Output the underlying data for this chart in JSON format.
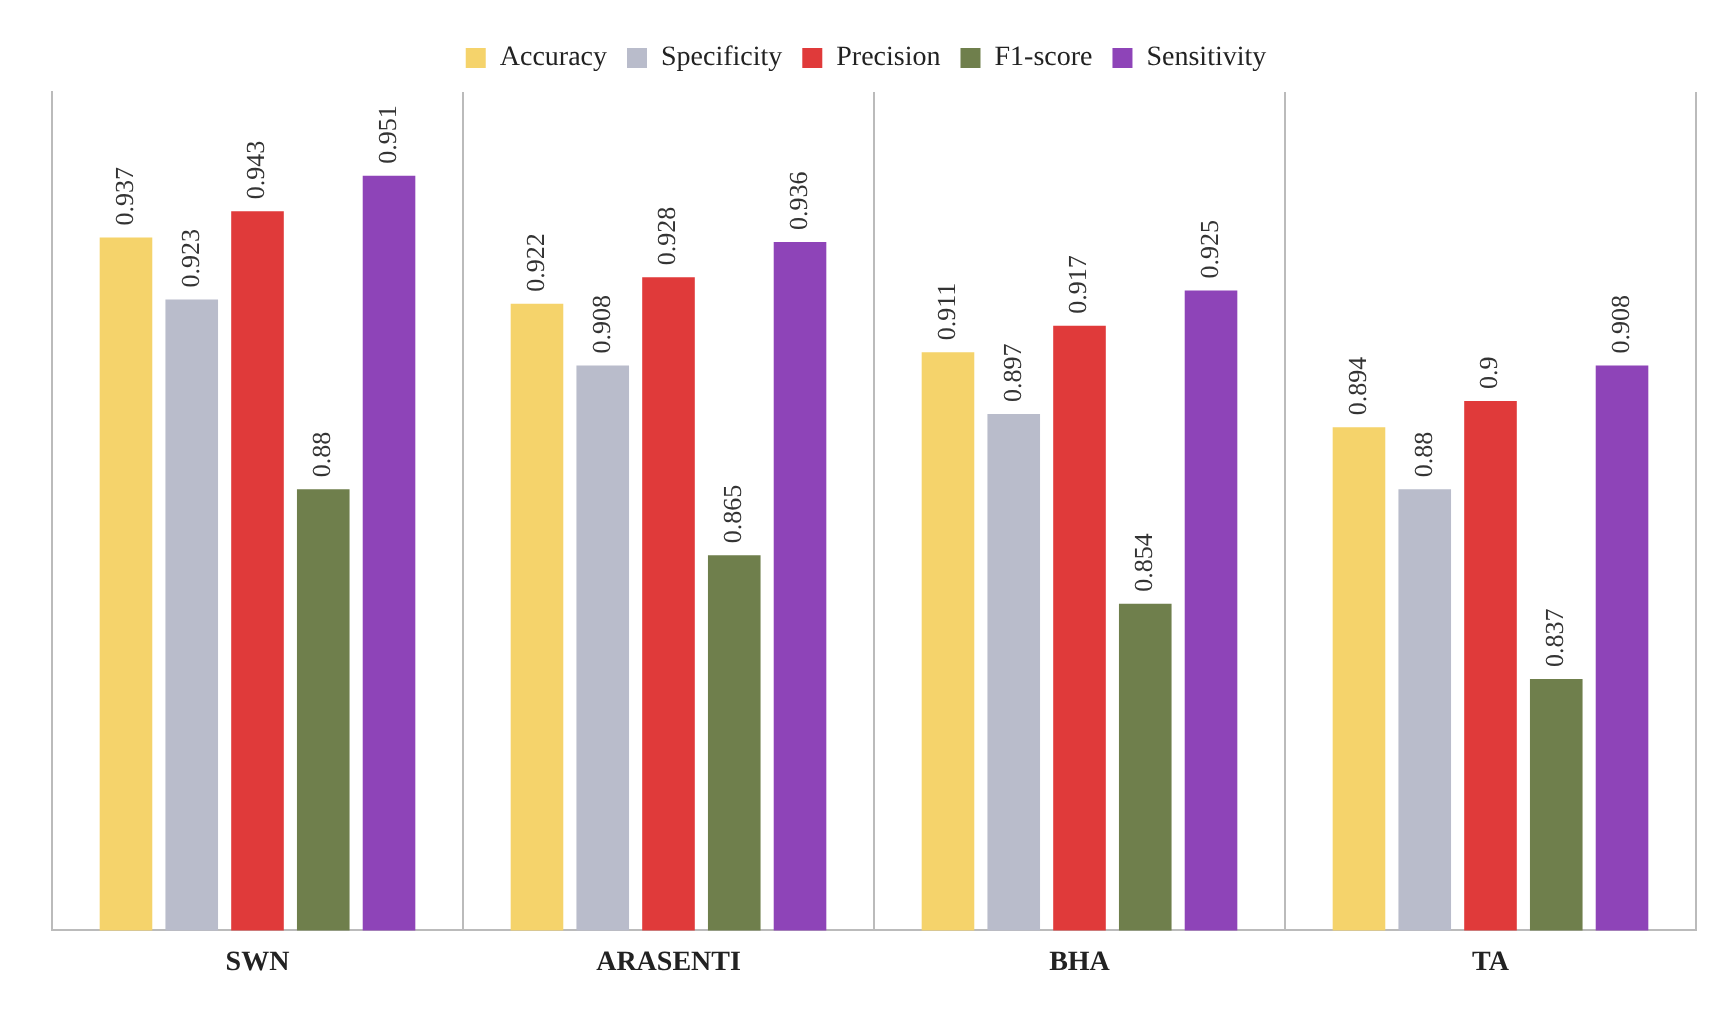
{
  "chart_data": {
    "type": "bar",
    "categories": [
      "SWN",
      "ARASENTI",
      "BHA",
      "TA"
    ],
    "series": [
      {
        "name": "Accuracy",
        "color": "#f5d36b",
        "values": [
          0.937,
          0.922,
          0.911,
          0.894
        ]
      },
      {
        "name": "Specificity",
        "color": "#b9bccb",
        "values": [
          0.923,
          0.908,
          0.897,
          0.88
        ]
      },
      {
        "name": "Precision",
        "color": "#e03a3a",
        "values": [
          0.943,
          0.928,
          0.917,
          0.9
        ]
      },
      {
        "name": "F1-score",
        "color": "#6f7f4c",
        "values": [
          0.88,
          0.865,
          0.854,
          0.837
        ]
      },
      {
        "name": "Sensitivity",
        "color": "#8e44b8",
        "values": [
          0.951,
          0.936,
          0.925,
          0.908
        ]
      }
    ],
    "ylim": [
      0.78,
      0.97
    ],
    "data_labels": true,
    "legend": "top",
    "grid": "x",
    "tick_labels": "x"
  }
}
